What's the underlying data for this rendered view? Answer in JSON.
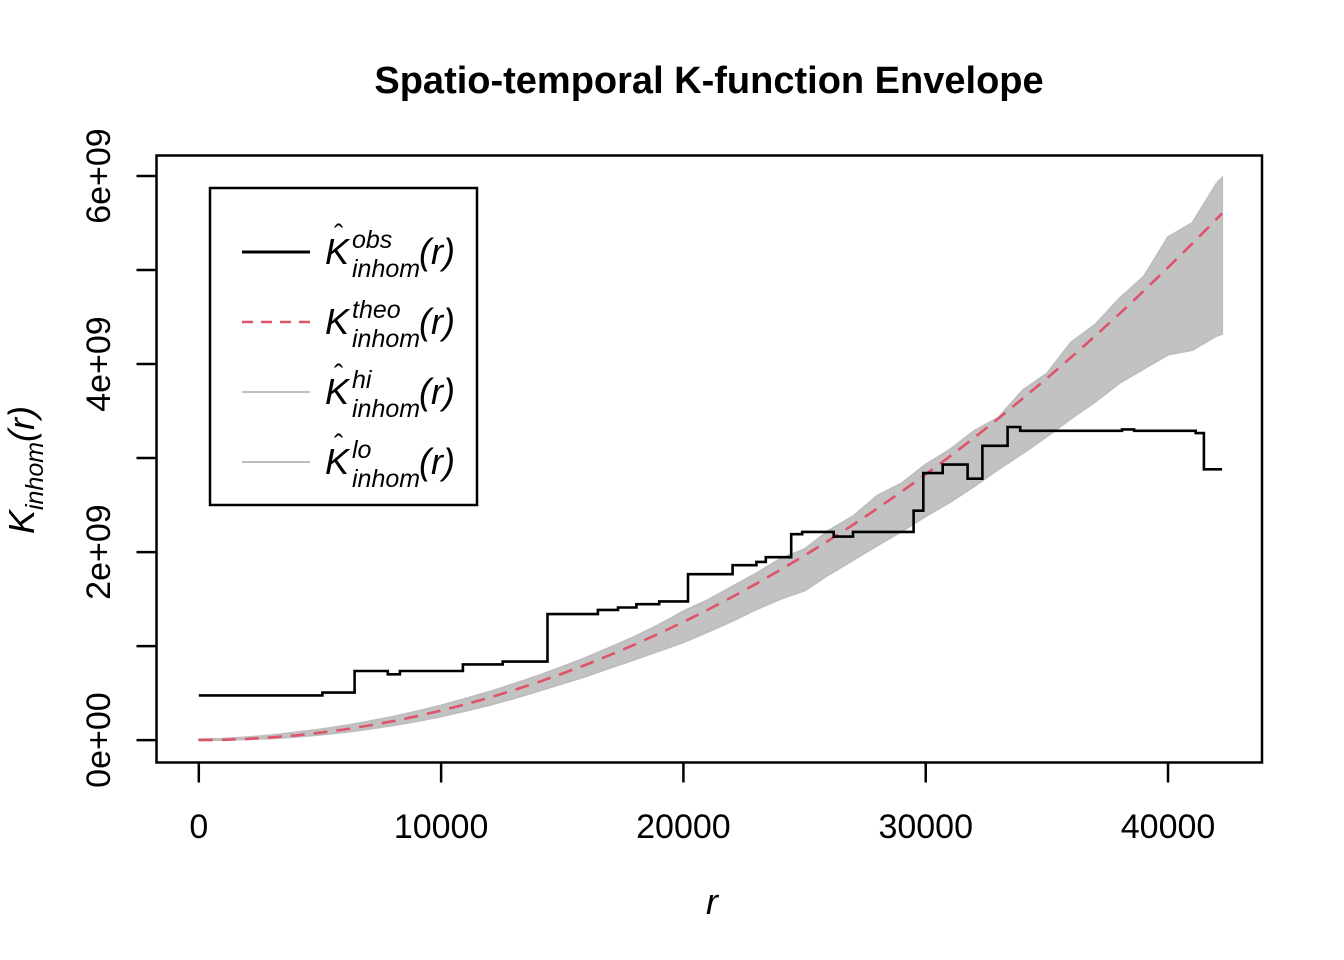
{
  "title": "Spatio-temporal K-function Envelope",
  "colors": {
    "obs": "#000000",
    "theo": "#DF536B",
    "envelope_fill": "#C2C2C2",
    "envelope_line": "#BEBEBE",
    "background": "#FFFFFF",
    "axis": "#000000"
  },
  "axes": {
    "x": {
      "label": "r"
    },
    "y": {
      "main": "K",
      "sub": "inhom",
      "arg": "(r)"
    }
  },
  "legend": {
    "items": [
      {
        "name": "obs",
        "hat": "ˆ",
        "main": "K",
        "sup": "obs",
        "sub": "inhom",
        "arg": "(r)",
        "line_color": "#000000",
        "dashed": false,
        "line_width": 3
      },
      {
        "name": "theo",
        "hat": "",
        "main": "K",
        "sup": "theo",
        "sub": "inhom",
        "arg": "(r)",
        "line_color": "#DF536B",
        "dashed": true,
        "line_width": 2.6
      },
      {
        "name": "hi",
        "hat": "ˆ",
        "main": "K",
        "sup": "hi",
        "sub": "inhom",
        "arg": "(r)",
        "line_color": "#BEBEBE",
        "dashed": false,
        "line_width": 2
      },
      {
        "name": "lo",
        "hat": "ˆ",
        "main": "K",
        "sup": "lo",
        "sub": "inhom",
        "arg": "(r)",
        "line_color": "#BEBEBE",
        "dashed": false,
        "line_width": 2
      }
    ]
  },
  "chart_data": {
    "type": "line",
    "title": "Spatio-temporal K-function Envelope",
    "xlabel": "r",
    "ylabel": "K_inhom(r)",
    "xlim": [
      -1746,
      43878
    ],
    "ylim_e9": [
      -0.2385,
      6.2185
    ],
    "grid": false,
    "legend_position": "top-left",
    "x_ticks": [
      {
        "value": 0,
        "label": "0"
      },
      {
        "value": 10000,
        "label": "10000"
      },
      {
        "value": 20000,
        "label": "20000"
      },
      {
        "value": 30000,
        "label": "30000"
      },
      {
        "value": 40000,
        "label": "40000"
      }
    ],
    "y_ticks": [
      {
        "value_e9": 0,
        "label": "0e+00"
      },
      {
        "value_e9": 1,
        "label": ""
      },
      {
        "value_e9": 2,
        "label": "2e+09"
      },
      {
        "value_e9": 3,
        "label": ""
      },
      {
        "value_e9": 4,
        "label": "4e+09"
      },
      {
        "value_e9": 5,
        "label": ""
      },
      {
        "value_e9": 6,
        "label": "6e+09"
      }
    ],
    "r_grid": [
      0,
      1000,
      2000,
      3000,
      4000,
      5000,
      6000,
      7000,
      8000,
      9000,
      10000,
      11000,
      12000,
      13000,
      14000,
      15000,
      16000,
      17000,
      18000,
      19000,
      20000,
      21000,
      22000,
      23000,
      24000,
      25000,
      26000,
      27000,
      28000,
      29000,
      30000,
      31000,
      32000,
      33000,
      34000,
      35000,
      36000,
      37000,
      38000,
      39000,
      40000,
      41000,
      42000,
      42230
    ],
    "series": [
      {
        "name": "theo",
        "style": "dashed",
        "color": "#DF536B",
        "values_e9": [
          0,
          0.003,
          0.013,
          0.028,
          0.05,
          0.079,
          0.113,
          0.154,
          0.201,
          0.254,
          0.314,
          0.38,
          0.452,
          0.531,
          0.616,
          0.707,
          0.804,
          0.908,
          1.018,
          1.134,
          1.257,
          1.385,
          1.521,
          1.662,
          1.81,
          1.963,
          2.124,
          2.29,
          2.463,
          2.642,
          2.827,
          3.019,
          3.217,
          3.421,
          3.632,
          3.848,
          4.071,
          4.301,
          4.536,
          4.778,
          5.027,
          5.281,
          5.542,
          5.603
        ]
      },
      {
        "name": "hi",
        "style": "solid",
        "color": "#BEBEBE",
        "values_e9": [
          0.008,
          0.014,
          0.03,
          0.052,
          0.082,
          0.113,
          0.152,
          0.198,
          0.248,
          0.306,
          0.368,
          0.44,
          0.515,
          0.597,
          0.684,
          0.78,
          0.88,
          0.988,
          1.102,
          1.228,
          1.37,
          1.49,
          1.63,
          1.772,
          1.928,
          2.03,
          2.23,
          2.38,
          2.6,
          2.73,
          2.93,
          3.09,
          3.29,
          3.43,
          3.72,
          3.9,
          4.23,
          4.42,
          4.7,
          4.93,
          5.35,
          5.5,
          5.92,
          5.98
        ]
      },
      {
        "name": "lo",
        "style": "solid",
        "color": "#BEBEBE",
        "values_e9": [
          0,
          0.001,
          0.008,
          0.018,
          0.034,
          0.057,
          0.084,
          0.118,
          0.156,
          0.2,
          0.252,
          0.31,
          0.373,
          0.443,
          0.52,
          0.6,
          0.68,
          0.77,
          0.858,
          0.95,
          1.04,
          1.15,
          1.265,
          1.39,
          1.5,
          1.59,
          1.76,
          1.915,
          2.07,
          2.22,
          2.38,
          2.53,
          2.7,
          2.88,
          3.05,
          3.23,
          3.42,
          3.6,
          3.8,
          3.95,
          4.1,
          4.15,
          4.3,
          4.32
        ]
      }
    ],
    "obs_step_points_r_Ke9": [
      [
        0,
        0.475
      ],
      [
        5100,
        0.505
      ],
      [
        6430,
        0.735
      ],
      [
        7800,
        0.7
      ],
      [
        8300,
        0.735
      ],
      [
        10900,
        0.805
      ],
      [
        12540,
        0.835
      ],
      [
        14390,
        1.34
      ],
      [
        16470,
        1.385
      ],
      [
        17300,
        1.41
      ],
      [
        18060,
        1.445
      ],
      [
        19000,
        1.475
      ],
      [
        20190,
        1.765
      ],
      [
        22030,
        1.86
      ],
      [
        23010,
        1.895
      ],
      [
        23400,
        1.945
      ],
      [
        24450,
        2.19
      ],
      [
        24900,
        2.215
      ],
      [
        26200,
        2.165
      ],
      [
        27000,
        2.215
      ],
      [
        29500,
        2.44
      ],
      [
        29900,
        2.84
      ],
      [
        30700,
        2.93
      ],
      [
        31730,
        2.78
      ],
      [
        32340,
        3.13
      ],
      [
        33380,
        3.33
      ],
      [
        33900,
        3.29
      ],
      [
        38100,
        3.305
      ],
      [
        38600,
        3.29
      ],
      [
        41140,
        3.265
      ],
      [
        41480,
        2.88
      ],
      [
        42230,
        2.88
      ]
    ],
    "envelope_fill_between": [
      "hi",
      "lo"
    ]
  }
}
